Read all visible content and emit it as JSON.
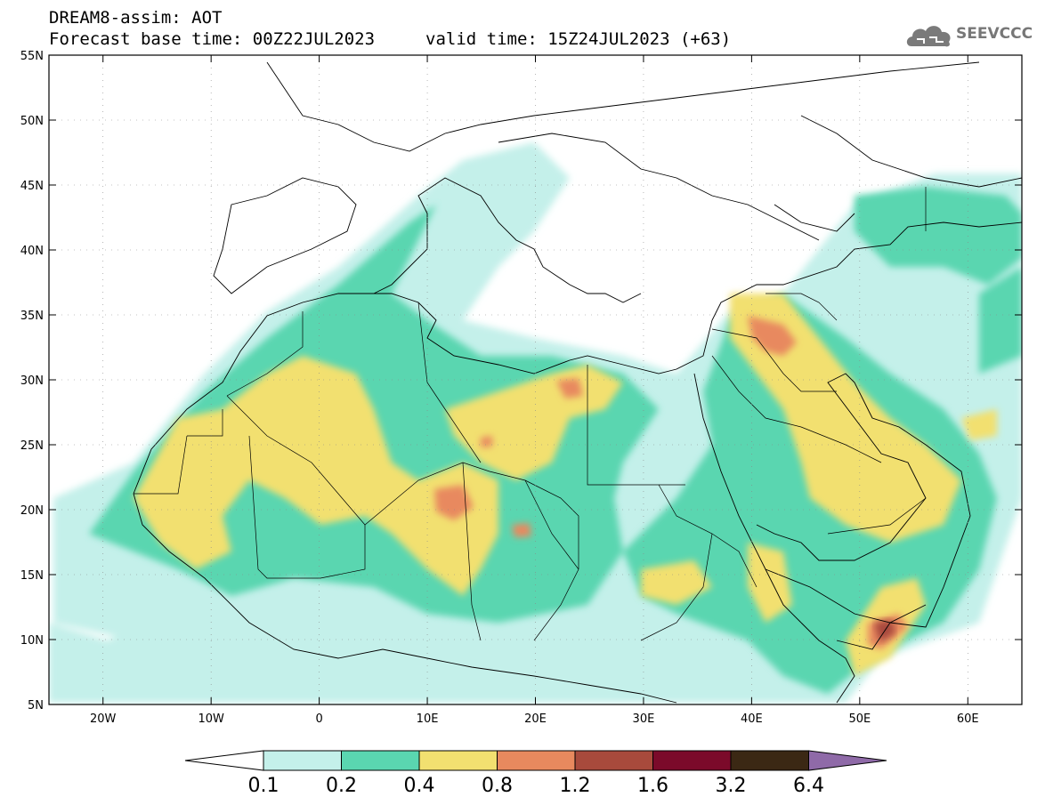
{
  "header": {
    "line1": "DREAM8-assim: AOT",
    "line2": "Forecast base time: 00Z22JUL2023",
    "line2_valid": "valid time: 15Z24JUL2023 (+63)"
  },
  "logo": {
    "text": "SEEVCCC",
    "icon": "cloud-icon"
  },
  "map": {
    "lon_range": [
      -25,
      65
    ],
    "lat_range": [
      5,
      55
    ],
    "lon_ticks": [
      {
        "value": -20,
        "label": "20W"
      },
      {
        "value": -10,
        "label": "10W"
      },
      {
        "value": 0,
        "label": "0"
      },
      {
        "value": 10,
        "label": "10E"
      },
      {
        "value": 20,
        "label": "20E"
      },
      {
        "value": 30,
        "label": "30E"
      },
      {
        "value": 40,
        "label": "40E"
      },
      {
        "value": 50,
        "label": "50E"
      },
      {
        "value": 60,
        "label": "60E"
      }
    ],
    "lat_ticks": [
      {
        "value": 5,
        "label": "5N"
      },
      {
        "value": 10,
        "label": "10N"
      },
      {
        "value": 15,
        "label": "15N"
      },
      {
        "value": 20,
        "label": "20N"
      },
      {
        "value": 25,
        "label": "25N"
      },
      {
        "value": 30,
        "label": "30N"
      },
      {
        "value": 35,
        "label": "35N"
      },
      {
        "value": 40,
        "label": "40N"
      },
      {
        "value": 45,
        "label": "45N"
      },
      {
        "value": 50,
        "label": "50N"
      },
      {
        "value": 55,
        "label": "55N"
      }
    ]
  },
  "colorbar": {
    "labels": [
      "0.1",
      "0.2",
      "0.4",
      "0.8",
      "1.2",
      "1.6",
      "3.2",
      "6.4"
    ],
    "colors": [
      "#ffffff",
      "#c4f0ea",
      "#5ad6b0",
      "#f2e070",
      "#e8895e",
      "#a84a3c",
      "#7b0a2a",
      "#3b2814",
      "#8f6aa8"
    ]
  }
}
